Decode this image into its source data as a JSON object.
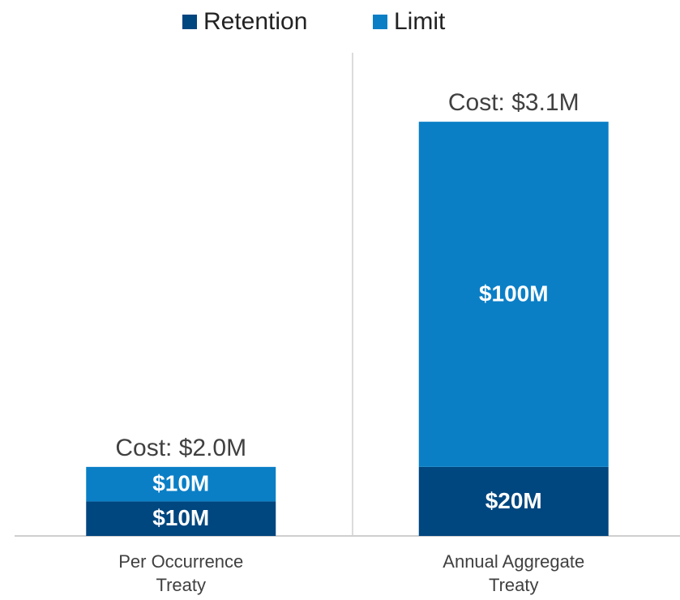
{
  "chart_data": {
    "type": "stacked_bar",
    "categories": [
      "Per Occurrence Treaty",
      "Annual Aggregate Treaty"
    ],
    "series": [
      {
        "name": "Retention",
        "color": "#00467f",
        "values": [
          10,
          20
        ],
        "value_labels": [
          "$10M",
          "$20M"
        ]
      },
      {
        "name": "Limit",
        "color": "#0a7fc6",
        "values": [
          10,
          100
        ],
        "value_labels": [
          "$10M",
          "$100M"
        ]
      }
    ],
    "annotations": [
      "Cost: $2.0M",
      "Cost: $3.1M"
    ],
    "ylim": [
      0,
      140
    ],
    "legend": "top"
  }
}
